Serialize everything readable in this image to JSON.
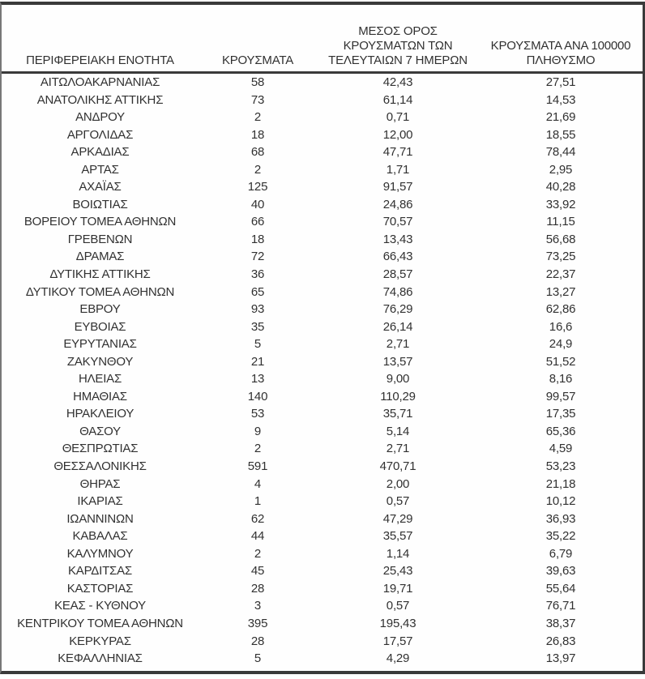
{
  "colors": {
    "background": "#ffffff",
    "text": "#313131",
    "border": "#3a3a3a"
  },
  "table": {
    "headers": [
      "ΠΕΡΙΦΕΡΕΙΑΚΗ ΕΝΟΤΗΤΑ",
      "ΚΡΟΥΣΜΑΤΑ",
      "ΜΕΣΟΣ ΟΡΟΣ\nΚΡΟΥΣΜΑΤΩΝ ΤΩΝ\nΤΕΛΕΥΤΑΙΩΝ 7 ΗΜΕΡΩΝ",
      "ΚΡΟΥΣΜΑΤΑ ΑΝΑ 100000\nΠΛΗΘΥΣΜΟ"
    ],
    "rows": [
      [
        "ΑΙΤΩΛΟΑΚΑΡΝΑΝΙΑΣ",
        "58",
        "42,43",
        "27,51"
      ],
      [
        "ΑΝΑΤΟΛΙΚΗΣ ΑΤΤΙΚΗΣ",
        "73",
        "61,14",
        "14,53"
      ],
      [
        "ΑΝΔΡΟΥ",
        "2",
        "0,71",
        "21,69"
      ],
      [
        "ΑΡΓΟΛΙΔΑΣ",
        "18",
        "12,00",
        "18,55"
      ],
      [
        "ΑΡΚΑΔΙΑΣ",
        "68",
        "47,71",
        "78,44"
      ],
      [
        "ΑΡΤΑΣ",
        "2",
        "1,71",
        "2,95"
      ],
      [
        "ΑΧΑΪΑΣ",
        "125",
        "91,57",
        "40,28"
      ],
      [
        "ΒΟΙΩΤΙΑΣ",
        "40",
        "24,86",
        "33,92"
      ],
      [
        "ΒΟΡΕΙΟΥ ΤΟΜΕΑ ΑΘΗΝΩΝ",
        "66",
        "70,57",
        "11,15"
      ],
      [
        "ΓΡΕΒΕΝΩΝ",
        "18",
        "13,43",
        "56,68"
      ],
      [
        "ΔΡΑΜΑΣ",
        "72",
        "66,43",
        "73,25"
      ],
      [
        "ΔΥΤΙΚΗΣ ΑΤΤΙΚΗΣ",
        "36",
        "28,57",
        "22,37"
      ],
      [
        "ΔΥΤΙΚΟΥ ΤΟΜΕΑ ΑΘΗΝΩΝ",
        "65",
        "74,86",
        "13,27"
      ],
      [
        "ΕΒΡΟΥ",
        "93",
        "76,29",
        "62,86"
      ],
      [
        "ΕΥΒΟΙΑΣ",
        "35",
        "26,14",
        "16,6"
      ],
      [
        "ΕΥΡΥΤΑΝΙΑΣ",
        "5",
        "2,71",
        "24,9"
      ],
      [
        "ΖΑΚΥΝΘΟΥ",
        "21",
        "13,57",
        "51,52"
      ],
      [
        "ΗΛΕΙΑΣ",
        "13",
        "9,00",
        "8,16"
      ],
      [
        "ΗΜΑΘΙΑΣ",
        "140",
        "110,29",
        "99,57"
      ],
      [
        "ΗΡΑΚΛΕΙΟΥ",
        "53",
        "35,71",
        "17,35"
      ],
      [
        "ΘΑΣΟΥ",
        "9",
        "5,14",
        "65,36"
      ],
      [
        "ΘΕΣΠΡΩΤΙΑΣ",
        "2",
        "2,71",
        "4,59"
      ],
      [
        "ΘΕΣΣΑΛΟΝΙΚΗΣ",
        "591",
        "470,71",
        "53,23"
      ],
      [
        "ΘΗΡΑΣ",
        "4",
        "2,00",
        "21,18"
      ],
      [
        "ΙΚΑΡΙΑΣ",
        "1",
        "0,57",
        "10,12"
      ],
      [
        "ΙΩΑΝΝΙΝΩΝ",
        "62",
        "47,29",
        "36,93"
      ],
      [
        "ΚΑΒΑΛΑΣ",
        "44",
        "35,57",
        "35,22"
      ],
      [
        "ΚΑΛΥΜΝΟΥ",
        "2",
        "1,14",
        "6,79"
      ],
      [
        "ΚΑΡΔΙΤΣΑΣ",
        "45",
        "25,43",
        "39,63"
      ],
      [
        "ΚΑΣΤΟΡΙΑΣ",
        "28",
        "19,71",
        "55,64"
      ],
      [
        "ΚΕΑΣ - ΚΥΘΝΟΥ",
        "3",
        "0,57",
        "76,71"
      ],
      [
        "ΚΕΝΤΡΙΚΟΥ ΤΟΜΕΑ ΑΘΗΝΩΝ",
        "395",
        "195,43",
        "38,37"
      ],
      [
        "ΚΕΡΚΥΡΑΣ",
        "28",
        "17,57",
        "26,83"
      ],
      [
        "ΚΕΦΑΛΛΗΝΙΑΣ",
        "5",
        "4,29",
        "13,97"
      ]
    ]
  }
}
